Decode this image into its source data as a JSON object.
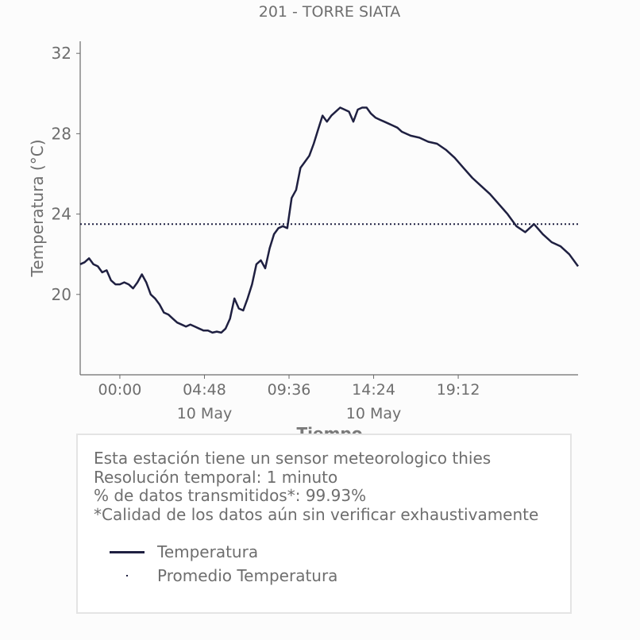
{
  "chart_data": {
    "type": "line",
    "title": "201 - TORRE SIATA",
    "xlabel": "Tiempo",
    "ylabel": "Temperatura (°C)",
    "ylim": [
      16.0,
      32.6
    ],
    "yticks": [
      20,
      24,
      28,
      32
    ],
    "x_unit": "hours since 00:00 10 May",
    "xlim": [
      -2.25,
      26.0
    ],
    "xticks": [
      {
        "x": 0.0,
        "label": "00:00",
        "sublabel": ""
      },
      {
        "x": 4.8,
        "label": "04:48",
        "sublabel": "10 May"
      },
      {
        "x": 9.6,
        "label": "09:36",
        "sublabel": ""
      },
      {
        "x": 14.4,
        "label": "14:24",
        "sublabel": "10 May"
      },
      {
        "x": 19.2,
        "label": "19:12",
        "sublabel": ""
      }
    ],
    "grid": false,
    "colors": {
      "series": "#1f2041",
      "axis": "#6b6b6b",
      "text": "#6e6e6e"
    },
    "series": [
      {
        "name": "Temperatura",
        "style": "solid",
        "x": [
          -2.25,
          -2.0,
          -1.75,
          -1.5,
          -1.25,
          -1.0,
          -0.75,
          -0.5,
          -0.25,
          0.0,
          0.25,
          0.5,
          0.75,
          1.0,
          1.25,
          1.5,
          1.75,
          2.0,
          2.25,
          2.5,
          2.75,
          3.0,
          3.25,
          3.5,
          3.75,
          4.0,
          4.25,
          4.5,
          4.75,
          5.0,
          5.25,
          5.5,
          5.75,
          6.0,
          6.25,
          6.5,
          6.75,
          7.0,
          7.25,
          7.5,
          7.75,
          8.0,
          8.25,
          8.5,
          8.75,
          9.0,
          9.25,
          9.5,
          9.75,
          10.0,
          10.25,
          10.5,
          10.75,
          11.0,
          11.25,
          11.5,
          11.75,
          12.0,
          12.25,
          12.5,
          12.75,
          13.0,
          13.25,
          13.5,
          13.75,
          14.0,
          14.25,
          14.5,
          14.75,
          15.0,
          15.25,
          15.5,
          15.75,
          16.0,
          16.5,
          17.0,
          17.5,
          18.0,
          18.5,
          19.0,
          19.5,
          20.0,
          20.5,
          21.0,
          21.5,
          22.0,
          22.5,
          23.0,
          23.5,
          24.0,
          24.5,
          25.0,
          25.5,
          26.0
        ],
        "y": [
          21.5,
          21.6,
          21.8,
          21.5,
          21.4,
          21.1,
          21.2,
          20.7,
          20.5,
          20.5,
          20.6,
          20.5,
          20.3,
          20.6,
          21.0,
          20.6,
          20.0,
          19.8,
          19.5,
          19.1,
          19.0,
          18.8,
          18.6,
          18.5,
          18.4,
          18.5,
          18.4,
          18.3,
          18.2,
          18.2,
          18.1,
          18.15,
          18.1,
          18.3,
          18.8,
          19.8,
          19.3,
          19.2,
          19.8,
          20.5,
          21.5,
          21.7,
          21.3,
          22.3,
          23.0,
          23.3,
          23.4,
          23.3,
          24.8,
          25.2,
          26.3,
          26.6,
          26.9,
          27.5,
          28.2,
          28.9,
          28.6,
          28.9,
          29.1,
          29.3,
          29.2,
          29.1,
          28.6,
          29.2,
          29.3,
          29.3,
          29.0,
          28.8,
          28.7,
          28.6,
          28.5,
          28.4,
          28.3,
          28.1,
          27.9,
          27.8,
          27.6,
          27.5,
          27.2,
          26.8,
          26.3,
          25.8,
          25.4,
          25.0,
          24.5,
          24.0,
          23.4,
          23.1,
          23.5,
          23.0,
          22.6,
          22.4,
          22.0,
          21.4
        ]
      },
      {
        "name": "Promedio Temperatura",
        "style": "dotted",
        "y_constant": 23.5
      }
    ]
  },
  "info_box": {
    "line1": "Esta estación tiene un sensor meteorologico thies",
    "line2": "Resolución temporal: 1 minuto",
    "line3": "% de datos transmitidos*: 99.93%",
    "line4": "*Calidad de los datos aún sin verificar exhaustivamente"
  },
  "legend": {
    "items": [
      {
        "label": "Temperatura",
        "marker": "line"
      },
      {
        "label": "Promedio Temperatura",
        "marker": "dot"
      }
    ]
  }
}
